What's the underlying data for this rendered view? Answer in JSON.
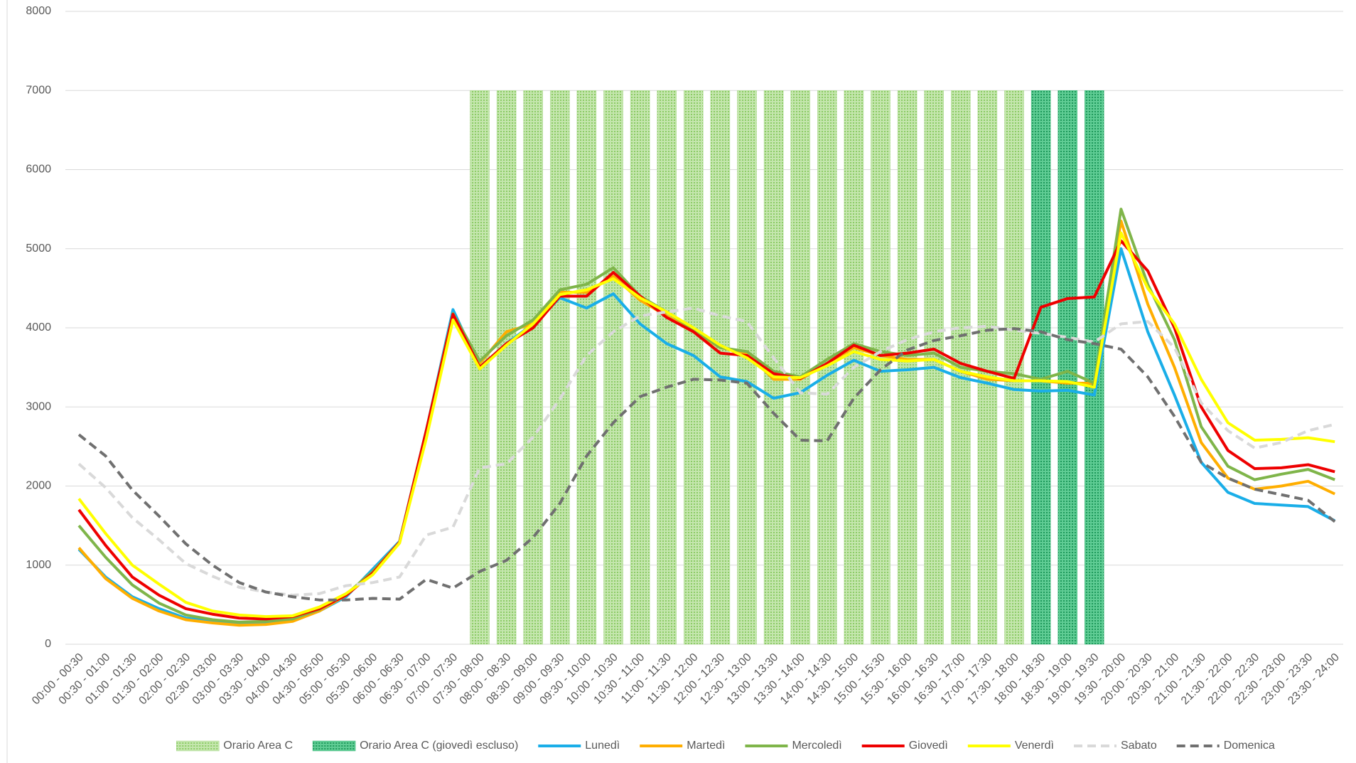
{
  "chart_data": {
    "type": "line",
    "categories": [
      "00:00 - 00:30",
      "00:30 - 01:00",
      "01:00 - 01:30",
      "01:30 - 02:00",
      "02:00 - 02:30",
      "02:30 - 03:00",
      "03:00 - 03:30",
      "03:30 - 04:00",
      "04:00 - 04:30",
      "04:30 - 05:00",
      "05:00 - 05:30",
      "05:30 - 06:00",
      "06:00 - 06:30",
      "06:30 - 07:00",
      "07:00 - 07:30",
      "07:30 - 08:00",
      "08:00 - 08:30",
      "08:30 - 09:00",
      "09:00 - 09:30",
      "09:30 - 10:00",
      "10:00 - 10:30",
      "10:30 - 11:00",
      "11:00 - 11:30",
      "11:30 - 12:00",
      "12:00 - 12:30",
      "12:30 - 13:00",
      "13:00 - 13:30",
      "13:30 - 14:00",
      "14:00 - 14:30",
      "14:30 - 15:00",
      "15:00 - 15:30",
      "15:30 - 16:00",
      "16:00 - 16:30",
      "16:30 - 17:00",
      "17:00 - 17:30",
      "17:30 - 18:00",
      "18:00 - 18:30",
      "18:30 - 19:00",
      "19:00 - 19:30",
      "19:30 - 20:00",
      "20:00 - 20:30",
      "20:30 - 21:00",
      "21:00 - 21:30",
      "21:30 - 22:00",
      "22:00 - 22:30",
      "22:30 - 23:00",
      "23:00 - 23:30",
      "23:30 - 24:00"
    ],
    "ylim": [
      0,
      8000
    ],
    "yticks": [
      0,
      1000,
      2000,
      3000,
      4000,
      5000,
      6000,
      7000,
      8000
    ],
    "grid": true,
    "legend": "bottom",
    "series": [
      {
        "name": "Orario Area C",
        "kind": "bar",
        "color": "#a9d98a",
        "values": [
          null,
          null,
          null,
          null,
          null,
          null,
          null,
          null,
          null,
          null,
          null,
          null,
          null,
          null,
          null,
          7000,
          7000,
          7000,
          7000,
          7000,
          7000,
          7000,
          7000,
          7000,
          7000,
          7000,
          7000,
          7000,
          7000,
          7000,
          7000,
          7000,
          7000,
          7000,
          7000,
          7000,
          null,
          null,
          null,
          null,
          null,
          null,
          null,
          null,
          null,
          null,
          null,
          null
        ]
      },
      {
        "name": "Orario Area C (giovedì escluso)",
        "kind": "bar",
        "color": "#3cb878",
        "values": [
          null,
          null,
          null,
          null,
          null,
          null,
          null,
          null,
          null,
          null,
          null,
          null,
          null,
          null,
          null,
          null,
          null,
          null,
          null,
          null,
          null,
          null,
          null,
          null,
          null,
          null,
          null,
          null,
          null,
          null,
          null,
          null,
          null,
          null,
          null,
          null,
          7000,
          7000,
          7000,
          null,
          null,
          null,
          null,
          null,
          null,
          null,
          null,
          null
        ]
      },
      {
        "name": "Lunedì",
        "kind": "line",
        "color": "#1aaee8",
        "dash": false,
        "values": [
          1200,
          850,
          600,
          450,
          330,
          290,
          260,
          270,
          300,
          420,
          600,
          950,
          1300,
          2700,
          4230,
          3500,
          3800,
          4050,
          4380,
          4250,
          4430,
          4050,
          3800,
          3650,
          3380,
          3320,
          3110,
          3180,
          3400,
          3590,
          3450,
          3470,
          3500,
          3370,
          3300,
          3220,
          3200,
          3210,
          3150,
          5000,
          3950,
          3150,
          2300,
          1920,
          1780,
          1760,
          1740,
          1560
        ]
      },
      {
        "name": "Martedì",
        "kind": "line",
        "color": "#ffae00",
        "dash": false,
        "values": [
          1220,
          830,
          580,
          420,
          310,
          270,
          240,
          250,
          290,
          420,
          620,
          900,
          1280,
          2650,
          4150,
          3550,
          3950,
          4050,
          4450,
          4450,
          4650,
          4350,
          4150,
          3950,
          3750,
          3680,
          3350,
          3350,
          3550,
          3750,
          3650,
          3600,
          3600,
          3450,
          3350,
          3330,
          3330,
          3300,
          3300,
          5350,
          4300,
          3500,
          2550,
          2100,
          1960,
          2000,
          2060,
          1900
        ]
      },
      {
        "name": "Mercoledì",
        "kind": "line",
        "color": "#7fb54a",
        "dash": false,
        "values": [
          1500,
          1100,
          750,
          520,
          370,
          310,
          280,
          290,
          320,
          440,
          630,
          920,
          1290,
          2700,
          4180,
          3580,
          3900,
          4100,
          4480,
          4550,
          4760,
          4400,
          4200,
          3980,
          3750,
          3700,
          3450,
          3380,
          3600,
          3800,
          3700,
          3650,
          3680,
          3500,
          3450,
          3420,
          3350,
          3450,
          3300,
          5500,
          4550,
          3850,
          2750,
          2250,
          2080,
          2150,
          2210,
          2080
        ]
      },
      {
        "name": "Giovedì",
        "kind": "line",
        "color": "#ee0000",
        "dash": false,
        "values": [
          1700,
          1250,
          850,
          620,
          450,
          380,
          330,
          320,
          350,
          450,
          620,
          900,
          1290,
          2700,
          4170,
          3500,
          3800,
          4000,
          4400,
          4400,
          4700,
          4400,
          4130,
          3950,
          3680,
          3650,
          3420,
          3360,
          3550,
          3780,
          3650,
          3680,
          3730,
          3550,
          3450,
          3360,
          4260,
          4370,
          4390,
          5100,
          4720,
          4000,
          3000,
          2450,
          2220,
          2230,
          2270,
          2180
        ]
      },
      {
        "name": "Venerdì",
        "kind": "line",
        "color": "#ffff00",
        "dash": false,
        "values": [
          1840,
          1400,
          1000,
          760,
          530,
          420,
          370,
          350,
          360,
          470,
          640,
          880,
          1280,
          2600,
          4100,
          3480,
          3780,
          4050,
          4420,
          4480,
          4620,
          4380,
          4200,
          4000,
          3780,
          3620,
          3380,
          3370,
          3520,
          3700,
          3600,
          3580,
          3600,
          3450,
          3380,
          3330,
          3330,
          3320,
          3250,
          5200,
          4500,
          4050,
          3350,
          2800,
          2580,
          2590,
          2610,
          2560
        ]
      },
      {
        "name": "Sabato",
        "kind": "line",
        "color": "#d9d9d9",
        "dash": true,
        "values": [
          2280,
          1980,
          1600,
          1320,
          1020,
          860,
          720,
          660,
          620,
          640,
          740,
          780,
          850,
          1380,
          1480,
          2230,
          2280,
          2620,
          3100,
          3650,
          3950,
          4150,
          4200,
          4250,
          4150,
          4080,
          3620,
          3180,
          3160,
          3500,
          3700,
          3850,
          3950,
          4000,
          4020,
          3970,
          3930,
          3880,
          3820,
          4050,
          4080,
          3750,
          3050,
          2700,
          2480,
          2550,
          2700,
          2780
        ]
      },
      {
        "name": "Domenica",
        "kind": "line",
        "color": "#707070",
        "dash": true,
        "values": [
          2650,
          2380,
          1950,
          1620,
          1270,
          1000,
          780,
          660,
          600,
          560,
          560,
          580,
          570,
          820,
          710,
          920,
          1060,
          1350,
          1780,
          2380,
          2800,
          3130,
          3250,
          3350,
          3340,
          3300,
          2920,
          2580,
          2570,
          3110,
          3470,
          3720,
          3840,
          3900,
          3970,
          3990,
          3950,
          3850,
          3800,
          3730,
          3380,
          2880,
          2300,
          2100,
          1960,
          1890,
          1820,
          1550
        ]
      }
    ]
  }
}
